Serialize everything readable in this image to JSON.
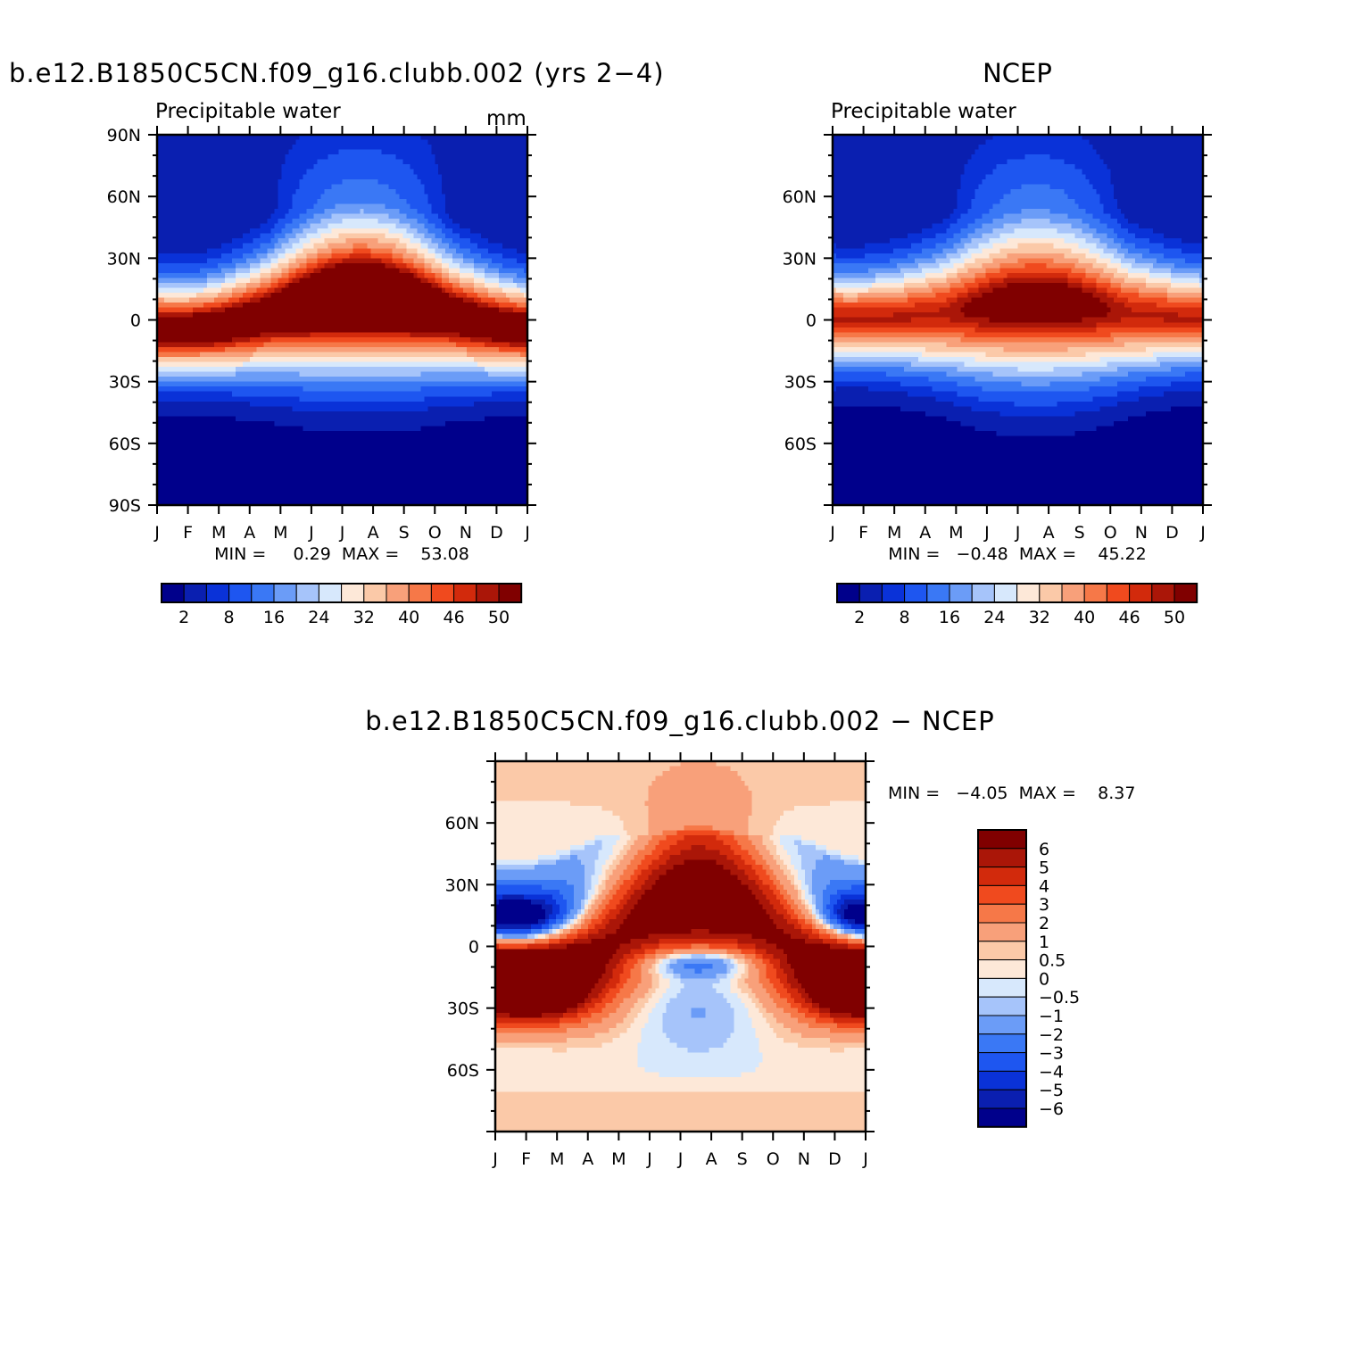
{
  "colors": {
    "main_palette": [
      "#00008b",
      "#0a1fb0",
      "#0a32d8",
      "#1e56f0",
      "#3a78f5",
      "#6b9cf7",
      "#a6c4fa",
      "#d7e8fc",
      "#fde8d8",
      "#fbc9a8",
      "#f8a07a",
      "#f67848",
      "#f04a1e",
      "#d22a0c",
      "#aa1608",
      "#800000"
    ],
    "diff_palette": [
      "#00008b",
      "#0a1fb0",
      "#0a32d8",
      "#1e56f0",
      "#3a78f5",
      "#6b9cf7",
      "#a6c4fa",
      "#d7e8fc",
      "#fde8d8",
      "#fbc9a8",
      "#f8a07a",
      "#f67848",
      "#f04a1e",
      "#d22a0c",
      "#aa1608",
      "#800000"
    ]
  },
  "months": [
    "J",
    "F",
    "M",
    "A",
    "M",
    "J",
    "J",
    "A",
    "S",
    "O",
    "N",
    "D",
    "J"
  ],
  "chart_data": [
    {
      "type": "heatmap",
      "title": "b.e12.B1850C5CN.f09_g16.clubb.002 (yrs 2−4)",
      "subtitle": "Precipitable water",
      "units": "mm",
      "xlabels": [
        "J",
        "F",
        "M",
        "A",
        "M",
        "J",
        "J",
        "A",
        "S",
        "O",
        "N",
        "D",
        "J"
      ],
      "ylabels": [
        "90N",
        "60N",
        "30N",
        "0",
        "30S",
        "60S",
        "90S"
      ],
      "ylim": [
        -90,
        90
      ],
      "stat_text": "MIN =     0.29  MAX =    53.08",
      "min": 0.29,
      "max": 53.08,
      "colorbar_labels": [
        "2",
        "8",
        "16",
        "24",
        "32",
        "40",
        "46",
        "50"
      ],
      "field": {
        "pole_north": 4,
        "pole_south": 1,
        "peak": 52,
        "itcz_lat_jan": -5,
        "itcz_lat_jul": 9
      }
    },
    {
      "type": "heatmap",
      "title": "NCEP",
      "subtitle": "Precipitable water",
      "xlabels": [
        "J",
        "F",
        "M",
        "A",
        "M",
        "J",
        "J",
        "A",
        "S",
        "O",
        "N",
        "D",
        "J"
      ],
      "ylabels": [
        "60N",
        "30N",
        "0",
        "30S",
        "60S"
      ],
      "ylim": [
        -90,
        90
      ],
      "stat_text": "MIN =   −0.48  MAX =    45.22",
      "min": -0.48,
      "max": 45.22,
      "colorbar_labels": [
        "2",
        "8",
        "16",
        "24",
        "32",
        "40",
        "46",
        "50"
      ],
      "field": {
        "pole_north": 3,
        "pole_south": 1,
        "peak": 45,
        "itcz_lat_jan": 0,
        "itcz_lat_jul": 6
      }
    },
    {
      "type": "heatmap",
      "title": "b.e12.B1850C5CN.f09_g16.clubb.002 − NCEP",
      "xlabels": [
        "J",
        "F",
        "M",
        "A",
        "M",
        "J",
        "J",
        "A",
        "S",
        "O",
        "N",
        "D",
        "J"
      ],
      "ylabels": [
        "60N",
        "30N",
        "0",
        "30S",
        "60S"
      ],
      "ylim": [
        -90,
        90
      ],
      "stat_text": "MIN =   −4.05  MAX =    8.37",
      "min": -4.05,
      "max": 8.37,
      "colorbar_labels": [
        "6",
        "5",
        "4",
        "3",
        "2",
        "1",
        "0.5",
        "0",
        "−0.5",
        "−1",
        "−2",
        "−3",
        "−4",
        "−5",
        "−6"
      ]
    }
  ]
}
